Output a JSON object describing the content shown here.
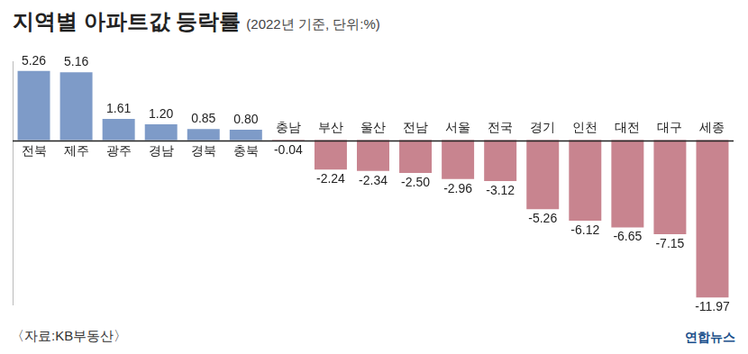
{
  "chart_data": {
    "type": "bar",
    "title": "지역별 아파트값 등락률",
    "subtitle": "(2022년 기준, 단위:%)",
    "source": "〈자료:KB부동산〉",
    "credit": "연합뉴스",
    "categories": [
      "전북",
      "제주",
      "광주",
      "경남",
      "경북",
      "충북",
      "충남",
      "부산",
      "울산",
      "전남",
      "서울",
      "전국",
      "경기",
      "인천",
      "대전",
      "대구",
      "세종"
    ],
    "values": [
      5.26,
      5.16,
      1.61,
      1.2,
      0.85,
      0.8,
      -0.04,
      -2.24,
      -2.34,
      -2.5,
      -2.96,
      -3.12,
      -5.26,
      -6.12,
      -6.65,
      -7.15,
      -11.97
    ],
    "value_labels": [
      "5.26",
      "5.16",
      "1.61",
      "1.20",
      "0.85",
      "0.80",
      "-0.04",
      "-2.24",
      "-2.34",
      "-2.50",
      "-2.96",
      "-3.12",
      "-5.26",
      "-6.12",
      "-6.65",
      "-7.15",
      "-11.97"
    ],
    "colors": [
      "#7e9bc8",
      "#7e9bc8",
      "#7e9bc8",
      "#7e9bc8",
      "#7e9bc8",
      "#7e9bc8",
      "#c8848f",
      "#c8848f",
      "#c8848f",
      "#c8848f",
      "#c8848f",
      "#c8848f",
      "#c8848f",
      "#c8848f",
      "#c8848f",
      "#c8848f",
      "#c8848f"
    ],
    "ylim": [
      -12.5,
      6
    ],
    "yticks": [
      0
    ],
    "grid": false,
    "data_labels": true,
    "tick_labels": "x"
  }
}
